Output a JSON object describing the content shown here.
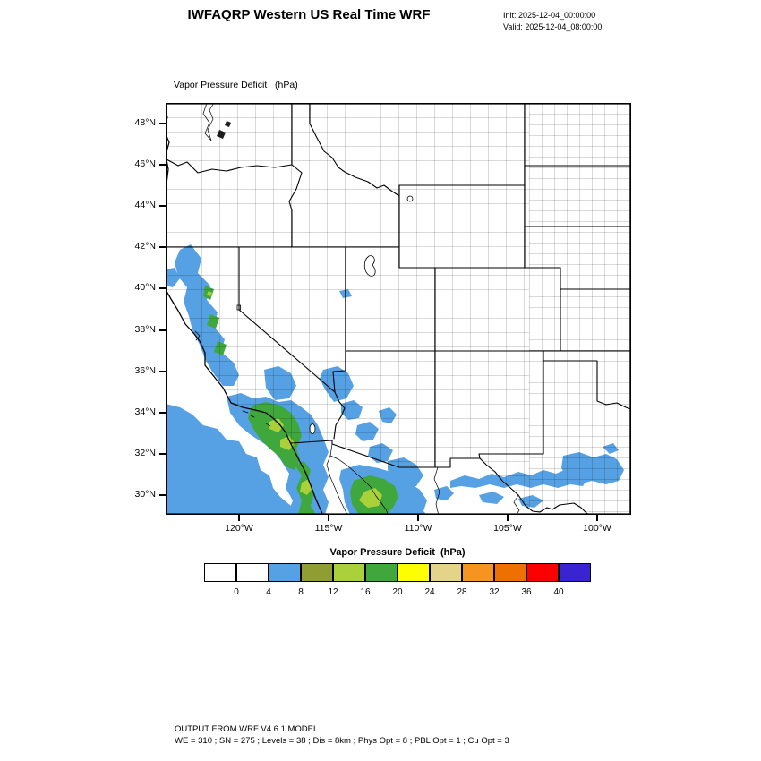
{
  "header": {
    "title": "IWFAQRP Western US Real Time WRF",
    "init_line": "Init: 2025-12-04_00:00:00",
    "valid_line": "Valid: 2025-12-04_08:00:00"
  },
  "map": {
    "field_label": "Vapor Pressure Deficit   (hPa)",
    "lat_ticks": [
      "48°N",
      "46°N",
      "44°N",
      "42°N",
      "40°N",
      "38°N",
      "36°N",
      "34°N",
      "32°N",
      "30°N"
    ],
    "lon_ticks": [
      "120°W",
      "115°W",
      "110°W",
      "105°W",
      "100°W"
    ]
  },
  "colorbar": {
    "title": "Vapor Pressure Deficit  (hPa)",
    "labels": [
      "0",
      "4",
      "8",
      "12",
      "16",
      "20",
      "24",
      "28",
      "32",
      "36",
      "40"
    ],
    "colors": [
      "#ffffff",
      "#ffffff",
      "#56a1e3",
      "#8f9e33",
      "#abd13a",
      "#3fa73c",
      "#fdfe02",
      "#e3d489",
      "#f5941f",
      "#ee7000",
      "#fb0000",
      "#3a23d0"
    ]
  },
  "footer": {
    "line1": "OUTPUT FROM WRF V4.6.1 MODEL",
    "line2": "WE = 310 ; SN = 275 ; Levels = 38 ; Dis = 8km ; Phys Opt = 8 ; PBL Opt = 1 ; Cu Opt = 3"
  },
  "chart_data": {
    "type": "heatmap",
    "title": "Vapor Pressure Deficit (hPa)",
    "variable": "Vapor Pressure Deficit",
    "units": "hPa",
    "model": "WRF V4.6.1",
    "init_time": "2025-12-04_00:00:00",
    "valid_time": "2025-12-04_08:00:00",
    "map_extent": {
      "lon_west_deg_w": 124.1,
      "lon_east_deg_w": 98.1,
      "lat_south_deg_n": 29.0,
      "lat_north_deg_n": 49.0
    },
    "x_tick_labels": [
      "120°W",
      "115°W",
      "110°W",
      "105°W",
      "100°W"
    ],
    "y_tick_labels": [
      "48°N",
      "46°N",
      "44°N",
      "42°N",
      "40°N",
      "38°N",
      "36°N",
      "34°N",
      "32°N",
      "30°N"
    ],
    "contour_levels": [
      0,
      4,
      8,
      12,
      16,
      20,
      24,
      28,
      32,
      36,
      40
    ],
    "palette": [
      "#ffffff",
      "#ffffff",
      "#56a1e3",
      "#8f9e33",
      "#abd13a",
      "#3fa73c",
      "#fdfe02",
      "#e3d489",
      "#f5941f",
      "#ee7000",
      "#fb0000",
      "#3a23d0"
    ],
    "legend_position": "bottom",
    "basemap": "US state and county boundaries plus northern Mexico states",
    "observed_regions": [
      {
        "region": "Pacific Ocean southwest of California and Baja",
        "vpd_hPa": "4-8"
      },
      {
        "region": "Northern California coast ranges 42N-36N",
        "vpd_hPa": "4-8 with 12-20 pockets"
      },
      {
        "region": "Southern California inland / Peninsular Ranges",
        "vpd_hPa": "8-20 core with 4-8 fringe"
      },
      {
        "region": "Baja California peninsula ridge",
        "vpd_hPa": "8-16"
      },
      {
        "region": "Lower Colorado River valley NV-AZ-CA",
        "vpd_hPa": "4-8"
      },
      {
        "region": "Southern Arizona and Sonora",
        "vpd_hPa": "4-8 with 12-16 core in Sonora"
      },
      {
        "region": "Rio Grande corridor Texas-Chihuahua-Coahuila",
        "vpd_hPa": "4-8 streaks"
      },
      {
        "region": "Interior west, Rockies and Great Plains",
        "vpd_hPa": "0-4"
      }
    ]
  }
}
